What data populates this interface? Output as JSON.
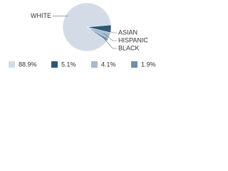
{
  "chart_data": {
    "type": "pie",
    "categories": [
      "WHITE",
      "ASIAN",
      "HISPANIC",
      "BLACK"
    ],
    "values": [
      88.9,
      5.1,
      4.1,
      1.9
    ],
    "value_labels": [
      "88.9%",
      "5.1%",
      "4.1%",
      "1.9%"
    ],
    "colors": [
      "#d3dce6",
      "#2d5878",
      "#a7b9cc",
      "#6f8fae"
    ],
    "legend": "bottom"
  }
}
